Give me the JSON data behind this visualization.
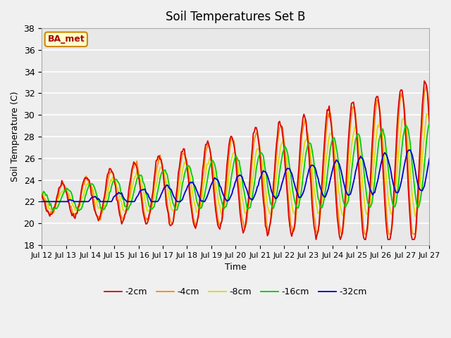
{
  "title": "Soil Temperatures Set B",
  "xlabel": "Time",
  "ylabel": "Soil Temperature (C)",
  "ylim": [
    18,
    38
  ],
  "yticks": [
    18,
    20,
    22,
    24,
    26,
    28,
    30,
    32,
    34,
    36,
    38
  ],
  "bg_color": "#e8e8e8",
  "grid_color": "#ffffff",
  "fig_bg": "#f0f0f0",
  "annotation_text": "BA_met",
  "annotation_bg": "#ffffcc",
  "annotation_border": "#cc8800",
  "annotation_text_color": "#aa0000",
  "series": {
    "-2cm": {
      "color": "#dd0000",
      "lw": 1.3
    },
    "-4cm": {
      "color": "#ff8800",
      "lw": 1.3
    },
    "-8cm": {
      "color": "#dddd00",
      "lw": 1.3
    },
    "-16cm": {
      "color": "#00cc00",
      "lw": 1.3
    },
    "-32cm": {
      "color": "#0000cc",
      "lw": 1.3
    }
  },
  "legend_order": [
    "-2cm",
    "-4cm",
    "-8cm",
    "-16cm",
    "-32cm"
  ],
  "x_tick_labels": [
    "Jul 12",
    "Jul 13",
    "Jul 14",
    "Jul 15",
    "Jul 16",
    "Jul 17",
    "Jul 18",
    "Jul 19",
    "Jul 20",
    "Jul 21",
    "Jul 22",
    "Jul 23",
    "Jul 24",
    "Jul 25",
    "Jul 26",
    "Jul 27",
    "Jul 27"
  ]
}
